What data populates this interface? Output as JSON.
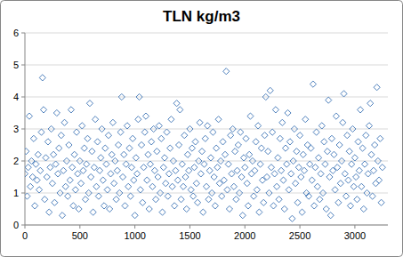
{
  "chart_data": {
    "type": "scatter",
    "title": "TLN kg/m3",
    "color": "#4f81bd",
    "marker": "diamond",
    "grid": true,
    "xlim": [
      0,
      3300
    ],
    "xticks": [
      0,
      500,
      1000,
      1500,
      2000,
      2500,
      3000
    ],
    "ylim": [
      0,
      6
    ],
    "yticks": [
      0,
      1,
      2,
      3,
      4,
      5,
      6
    ],
    "x": [
      0,
      10,
      20,
      30,
      40,
      50,
      60,
      70,
      80,
      90,
      100,
      110,
      120,
      130,
      140,
      150,
      160,
      170,
      180,
      190,
      200,
      210,
      220,
      230,
      240,
      250,
      260,
      270,
      280,
      290,
      300,
      310,
      320,
      330,
      340,
      350,
      360,
      370,
      380,
      390,
      400,
      410,
      420,
      430,
      440,
      450,
      460,
      470,
      480,
      490,
      500,
      510,
      520,
      530,
      540,
      550,
      560,
      570,
      580,
      590,
      600,
      610,
      620,
      630,
      640,
      650,
      660,
      670,
      680,
      690,
      700,
      710,
      720,
      730,
      740,
      750,
      760,
      770,
      780,
      790,
      800,
      810,
      820,
      830,
      840,
      850,
      860,
      870,
      880,
      890,
      900,
      910,
      920,
      930,
      940,
      950,
      960,
      970,
      980,
      990,
      1000,
      1010,
      1020,
      1030,
      1040,
      1050,
      1060,
      1070,
      1080,
      1090,
      1100,
      1110,
      1120,
      1130,
      1140,
      1150,
      1160,
      1170,
      1180,
      1190,
      1200,
      1210,
      1220,
      1230,
      1240,
      1250,
      1260,
      1270,
      1280,
      1290,
      1300,
      1310,
      1320,
      1330,
      1340,
      1350,
      1360,
      1370,
      1380,
      1390,
      1400,
      1410,
      1420,
      1430,
      1440,
      1450,
      1460,
      1470,
      1480,
      1490,
      1500,
      1510,
      1520,
      1530,
      1540,
      1550,
      1560,
      1570,
      1580,
      1590,
      1600,
      1610,
      1620,
      1630,
      1640,
      1650,
      1660,
      1670,
      1680,
      1690,
      1700,
      1710,
      1720,
      1730,
      1740,
      1750,
      1760,
      1770,
      1780,
      1790,
      1800,
      1810,
      1820,
      1830,
      1840,
      1850,
      1860,
      1870,
      1880,
      1890,
      1900,
      1910,
      1920,
      1930,
      1940,
      1950,
      1960,
      1970,
      1980,
      1990,
      2000,
      2010,
      2020,
      2030,
      2040,
      2050,
      2060,
      2070,
      2080,
      2090,
      2100,
      2110,
      2120,
      2130,
      2140,
      2150,
      2160,
      2170,
      2180,
      2190,
      2200,
      2210,
      2220,
      2230,
      2240,
      2250,
      2260,
      2270,
      2280,
      2290,
      2300,
      2310,
      2320,
      2330,
      2340,
      2350,
      2360,
      2370,
      2380,
      2390,
      2400,
      2410,
      2420,
      2430,
      2440,
      2450,
      2460,
      2470,
      2480,
      2490,
      2500,
      2510,
      2520,
      2530,
      2540,
      2550,
      2560,
      2570,
      2580,
      2590,
      2600,
      2610,
      2620,
      2630,
      2640,
      2650,
      2660,
      2670,
      2680,
      2690,
      2700,
      2710,
      2720,
      2730,
      2740,
      2750,
      2760,
      2770,
      2780,
      2790,
      2800,
      2810,
      2820,
      2830,
      2840,
      2850,
      2860,
      2870,
      2880,
      2890,
      2900,
      2910,
      2920,
      2930,
      2940,
      2950,
      2960,
      2970,
      2980,
      2990,
      3000,
      3010,
      3020,
      3030,
      3040,
      3050,
      3060,
      3070,
      3080,
      3090,
      3100,
      3110,
      3120,
      3130,
      3140,
      3150,
      3160,
      3170,
      3180,
      3190,
      3200,
      3210,
      3220,
      3230,
      3240,
      3250
    ],
    "values": [
      1.6,
      2.3,
      0.9,
      1.8,
      3.4,
      1.2,
      2.0,
      1.5,
      2.7,
      0.6,
      1.9,
      1.4,
      2.2,
      1.1,
      1.7,
      2.9,
      4.6,
      3.6,
      0.8,
      2.1,
      1.5,
      2.6,
      0.4,
      1.8,
      3.0,
      1.3,
      2.2,
      0.7,
      1.9,
      3.5,
      1.6,
      2.4,
      1.0,
      2.8,
      0.3,
      1.7,
      3.2,
      1.2,
      2.0,
      0.9,
      2.5,
      1.4,
      3.6,
      1.8,
      0.6,
      2.2,
      1.1,
      2.9,
      1.6,
      0.5,
      2.0,
      1.3,
      3.1,
      1.7,
      2.4,
      0.8,
      1.9,
      2.7,
      1.0,
      3.8,
      1.5,
      2.3,
      0.4,
      1.8,
      3.3,
      1.2,
      2.6,
      0.9,
      1.7,
      2.1,
      3.0,
      1.4,
      0.6,
      2.4,
      1.9,
      1.1,
      2.8,
      0.5,
      1.6,
      2.2,
      3.2,
      1.3,
      2.0,
      0.8,
      1.7,
      2.5,
      1.0,
      2.9,
      4.0,
      1.5,
      2.2,
      0.6,
      1.9,
      3.1,
      1.2,
      2.4,
      0.9,
      1.8,
      2.7,
      1.4,
      0.3,
      2.1,
      1.6,
      3.3,
      4.0,
      1.1,
      2.5,
      0.7,
      1.8,
      2.9,
      3.4,
      1.4,
      2.2,
      0.5,
      1.9,
      2.6,
      1.2,
      3.0,
      1.7,
      0.8,
      2.3,
      1.5,
      3.1,
      1.0,
      2.7,
      0.4,
      1.8,
      2.1,
      1.3,
      2.9,
      0.9,
      1.6,
      2.4,
      3.3,
      1.2,
      2.0,
      0.6,
      1.7,
      3.8,
      1.4,
      2.5,
      3.6,
      0.8,
      1.9,
      1.2,
      2.8,
      1.5,
      0.5,
      2.2,
      1.7,
      3.0,
      1.1,
      2.4,
      0.9,
      1.8,
      2.6,
      1.3,
      0.7,
      2.0,
      3.2,
      1.6,
      2.3,
      0.4,
      1.9,
      2.7,
      1.2,
      3.1,
      0.8,
      1.7,
      2.1,
      1.0,
      2.9,
      1.5,
      0.6,
      2.4,
      1.8,
      3.3,
      1.3,
      2.0,
      0.9,
      2.6,
      1.4,
      2.2,
      4.8,
      1.1,
      1.9,
      0.5,
      2.8,
      1.6,
      3.0,
      1.2,
      2.3,
      0.8,
      1.7,
      2.5,
      1.0,
      2.9,
      1.5,
      0.3,
      2.1,
      1.8,
      2.7,
      1.3,
      0.6,
      2.2,
      3.4,
      1.6,
      2.0,
      0.9,
      1.7,
      2.6,
      1.1,
      3.1,
      0.4,
      1.9,
      2.4,
      1.4,
      0.7,
      2.8,
      4.0,
      1.5,
      2.3,
      1.0,
      4.2,
      1.8,
      2.9,
      0.6,
      1.6,
      3.6,
      1.2,
      2.1,
      0.8,
      2.7,
      1.7,
      3.2,
      1.4,
      0.5,
      2.4,
      1.9,
      3.5,
      1.1,
      2.6,
      1.6,
      0.2,
      2.0,
      3.0,
      1.3,
      2.3,
      0.7,
      1.8,
      2.8,
      1.5,
      0.4,
      2.2,
      1.7,
      3.3,
      1.0,
      2.5,
      0.9,
      1.9,
      2.4,
      1.4,
      4.4,
      0.6,
      1.8,
      2.9,
      1.2,
      2.1,
      0.8,
      1.6,
      3.1,
      1.0,
      2.6,
      1.9,
      0.5,
      2.3,
      3.9,
      1.5,
      0.3,
      2.7,
      1.7,
      2.2,
      1.1,
      3.4,
      1.8,
      0.7,
      2.5,
      1.3,
      2.0,
      3.2,
      4.1,
      1.6,
      0.9,
      2.8,
      1.4,
      2.3,
      0.6,
      1.9,
      3.0,
      1.2,
      2.1,
      1.5,
      0.8,
      2.6,
      1.7,
      3.6,
      1.2,
      2.4,
      0.5,
      1.9,
      2.8,
      1.0,
      1.6,
      3.1,
      3.8,
      2.2,
      0.9,
      1.7,
      2.5,
      1.3,
      4.3,
      2.0,
      1.4,
      2.7,
      0.7,
      1.8
    ]
  }
}
